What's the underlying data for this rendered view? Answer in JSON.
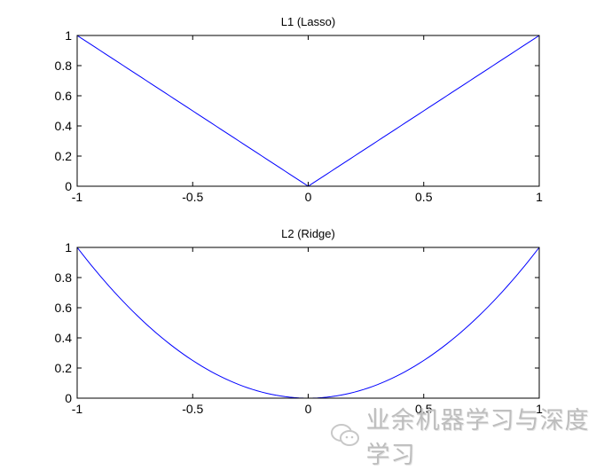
{
  "chart_data": [
    {
      "type": "line",
      "title": "L1 (Lasso)",
      "function": "|x|",
      "x": [
        -1,
        -0.5,
        0,
        0.5,
        1
      ],
      "y": [
        1,
        0.5,
        0,
        0.5,
        1
      ],
      "xlim": [
        -1,
        1
      ],
      "ylim": [
        0,
        1
      ],
      "xticks": [
        "-1",
        "-0.5",
        "0",
        "0.5",
        "1"
      ],
      "yticks": [
        "0",
        "0.2",
        "0.4",
        "0.6",
        "0.8",
        "1"
      ],
      "grid": false,
      "color": "#0000ff"
    },
    {
      "type": "line",
      "title": "L2 (Ridge)",
      "function": "x^2",
      "x": [
        -1,
        -0.75,
        -0.5,
        -0.25,
        0,
        0.25,
        0.5,
        0.75,
        1
      ],
      "y": [
        1,
        0.5625,
        0.25,
        0.0625,
        0,
        0.0625,
        0.25,
        0.5625,
        1
      ],
      "xlim": [
        -1,
        1
      ],
      "ylim": [
        0,
        1
      ],
      "xticks": [
        "-1",
        "-0.5",
        "0",
        "0.5",
        "1"
      ],
      "yticks": [
        "0",
        "0.2",
        "0.4",
        "0.6",
        "0.8",
        "1"
      ],
      "grid": false,
      "color": "#0000ff"
    }
  ],
  "watermark": {
    "text": "业余机器学习与深度学习",
    "icon": "wechat-icon"
  }
}
